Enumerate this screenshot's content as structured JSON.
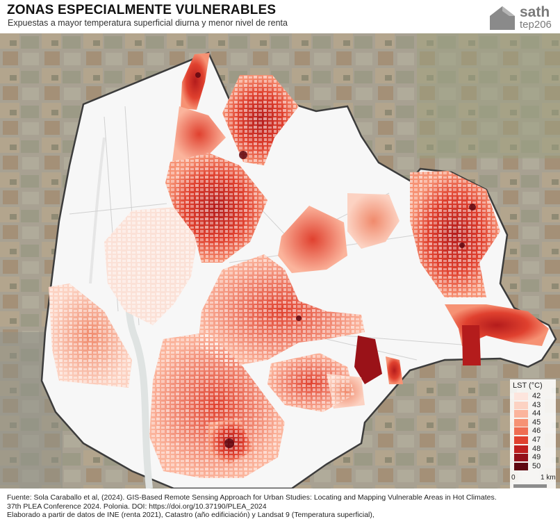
{
  "header": {
    "title": "ZONAS ESPECIALMENTE VULNERABLES",
    "subtitle": "Expuestas a mayor temperatura superficial diurna y menor nivel de renta"
  },
  "logo": {
    "name": "sath",
    "group": "tep206",
    "icon": "house-icon"
  },
  "legend": {
    "title": "LST (°C)",
    "items": [
      {
        "value": "42",
        "color": "#fde5dd"
      },
      {
        "value": "43",
        "color": "#fcd2c2"
      },
      {
        "value": "44",
        "color": "#fbb49c"
      },
      {
        "value": "45",
        "color": "#f69274"
      },
      {
        "value": "46",
        "color": "#ef6d52"
      },
      {
        "value": "47",
        "color": "#e0412f"
      },
      {
        "value": "48",
        "color": "#bf1f1f"
      },
      {
        "value": "49",
        "color": "#93101a"
      },
      {
        "value": "50",
        "color": "#5e0710"
      }
    ]
  },
  "scale": {
    "start": "0",
    "end": "1 km"
  },
  "footer": {
    "line1": "Fuente: Sola Caraballo et al,  (2024). GIS-Based Remote Sensing Approach for Urban Studies: Locating and Mapping Vulnerable Areas in Hot Climates.",
    "line2": "37th PLEA Conference 2024. Polonia. DOI: https://doi.org/10.37190/PLEA_2024",
    "line3": "Elaborado a partir de datos de INE (renta 2021), Catastro (año edificiación) y Landsat 9 (Temperatura superficial),"
  },
  "colors": {
    "satellite_base": "#a8a192",
    "city_fill": "#f7f7f7",
    "boundary": "#3c3c3c",
    "river": "#dfe3e2"
  }
}
